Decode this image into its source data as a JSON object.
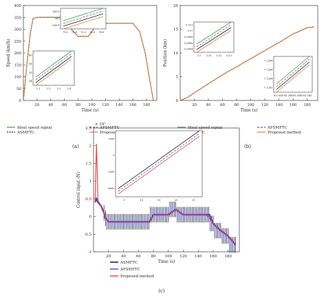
{
  "chart_data": [
    {
      "type": "line",
      "panel_label": "(a)",
      "xlabel": "Time (s)",
      "ylabel": "Speed (km/h)",
      "xlim": [
        0,
        195
      ],
      "ylim": [
        0,
        400
      ],
      "xticks": [
        20,
        40,
        60,
        80,
        100,
        120,
        140,
        160,
        180
      ],
      "yticks": [
        0,
        50,
        100,
        150,
        200,
        250,
        300,
        350,
        400
      ],
      "inset_x_ticks": [
        "71.6",
        "72.4",
        "73.2",
        "74.0",
        "74.8"
      ],
      "inset_y_ticks": [
        "260.5",
        "262",
        "260.5"
      ],
      "inset2_x_ticks": [
        "2.1",
        "2.2",
        "2.3",
        "2.4"
      ],
      "inset2_y_ticks": [
        "40",
        "38",
        "36",
        "34"
      ],
      "x": [
        0,
        5,
        10,
        14,
        20,
        40,
        60,
        70,
        80,
        90,
        95,
        100,
        110,
        120,
        130,
        140,
        150,
        160,
        170,
        178,
        185,
        190
      ],
      "series": [
        {
          "name": "Ideal speed signal",
          "color": "#2ca02c",
          "values": [
            0,
            150,
            280,
            345,
            350,
            350,
            350,
            300,
            270,
            270,
            270,
            290,
            325,
            325,
            325,
            325,
            325,
            325,
            290,
            200,
            80,
            0
          ]
        },
        {
          "name": "AFSMFTC",
          "color": "#3a4fd8",
          "values": [
            0,
            148,
            278,
            344,
            350,
            350,
            350,
            300,
            270,
            270,
            270,
            290,
            325,
            325,
            325,
            325,
            325,
            325,
            290,
            200,
            80,
            0
          ]
        },
        {
          "name": "ASMFTC",
          "color": "#111111",
          "values": [
            0,
            149,
            279,
            345,
            350,
            350,
            350,
            300,
            270,
            270,
            270,
            290,
            325,
            325,
            325,
            325,
            325,
            325,
            290,
            200,
            80,
            0
          ]
        },
        {
          "name": "Proposed method",
          "color": "#e87a2a",
          "values": [
            0,
            150,
            280,
            345,
            350,
            350,
            350,
            300,
            270,
            270,
            270,
            290,
            325,
            325,
            325,
            325,
            325,
            325,
            290,
            200,
            80,
            0
          ]
        }
      ]
    },
    {
      "type": "line",
      "panel_label": "(b)",
      "xlabel": "Time (s)",
      "ylabel": "Position (km)",
      "xlim": [
        0,
        195
      ],
      "ylim": [
        0,
        20
      ],
      "xticks": [
        20,
        40,
        60,
        80,
        100,
        120,
        140,
        160,
        180
      ],
      "yticks": [
        0,
        5,
        10,
        15,
        20
      ],
      "inset_x_ticks": [
        "3.5",
        "3.51",
        "3.52",
        "3.53"
      ],
      "inset_y_ticks": [
        "0.072",
        "0.07",
        "0.0698",
        "0.0696",
        "0.0694"
      ],
      "inset2_x_ticks": [
        "83.2635",
        "83.264",
        "83.2645",
        "83.265"
      ],
      "inset2_y_ticks": [
        "7.1268",
        "7.1266",
        "7.1264",
        "7.1262"
      ],
      "x": [
        0,
        10,
        20,
        40,
        60,
        80,
        100,
        120,
        140,
        160,
        180,
        190
      ],
      "series": [
        {
          "name": "Ideal speed signal",
          "color": "#2ca02c",
          "values": [
            0,
            0.6,
            1.6,
            3.5,
            5.4,
            7.1,
            8.8,
            10.5,
            12.2,
            14.0,
            15.3,
            15.5
          ]
        },
        {
          "name": "AFSMFTC",
          "color": "#3a4fd8",
          "values": [
            0,
            0.6,
            1.6,
            3.5,
            5.4,
            7.1,
            8.8,
            10.5,
            12.2,
            14.0,
            15.3,
            15.5
          ]
        },
        {
          "name": "ASMFTC",
          "color": "#111111",
          "values": [
            0,
            0.6,
            1.6,
            3.5,
            5.4,
            7.1,
            8.8,
            10.5,
            12.2,
            14.0,
            15.3,
            15.5
          ]
        },
        {
          "name": "Proposed method",
          "color": "#e87a2a",
          "values": [
            0,
            0.6,
            1.6,
            3.5,
            5.4,
            7.1,
            8.8,
            10.5,
            12.2,
            14.0,
            15.3,
            15.5
          ]
        }
      ]
    },
    {
      "type": "line",
      "panel_label": "(c)",
      "xlabel": "Time (s)",
      "ylabel": "Control input (N)",
      "exponent_label": "× 10⁵",
      "xlim": [
        0,
        195
      ],
      "ylim": [
        -1,
        2.5
      ],
      "xticks": [
        20,
        40,
        60,
        80,
        100,
        120,
        140,
        160,
        180
      ],
      "yticks": [
        -1,
        -0.5,
        0,
        0.5,
        1,
        1.5,
        2,
        2.5
      ],
      "inset_x_ticks": [
        "5",
        "10",
        "15",
        "20",
        "25"
      ],
      "inset_y_ticks": [
        "2000",
        "0",
        "-2000",
        "-4000"
      ],
      "x": [
        2,
        4,
        6,
        10,
        14,
        16,
        20,
        40,
        60,
        70,
        75,
        80,
        100,
        110,
        120,
        140,
        150,
        155,
        160,
        170,
        180,
        190
      ],
      "series": [
        {
          "name": "ASMFTC",
          "color": "#111111",
          "values": [
            0.4,
            0.5,
            0.4,
            0.3,
            0.1,
            -0.05,
            -0.15,
            -0.15,
            -0.15,
            -0.15,
            -0.15,
            0.05,
            0.05,
            0.2,
            0.05,
            0.05,
            0.05,
            0.05,
            -0.2,
            -0.4,
            -0.55,
            -0.8
          ]
        },
        {
          "name": "AFSMFTC",
          "color": "#3a4fd8",
          "values": [
            0.4,
            0.5,
            0.4,
            0.3,
            0.1,
            -0.05,
            -0.15,
            -0.15,
            -0.15,
            -0.15,
            -0.15,
            0.05,
            0.05,
            0.2,
            0.05,
            0.05,
            0.05,
            0.05,
            -0.2,
            -0.4,
            -0.55,
            -0.8
          ]
        },
        {
          "name": "Proposed method",
          "color": "#e8423a",
          "values": [
            0.4,
            2.05,
            0.45,
            0.3,
            0.1,
            -0.05,
            -0.15,
            -0.15,
            -0.15,
            -0.15,
            -0.15,
            0.05,
            0.05,
            0.2,
            0.05,
            0.05,
            0.05,
            -0.05,
            -0.2,
            -0.4,
            -0.55,
            -0.8
          ]
        }
      ]
    }
  ]
}
